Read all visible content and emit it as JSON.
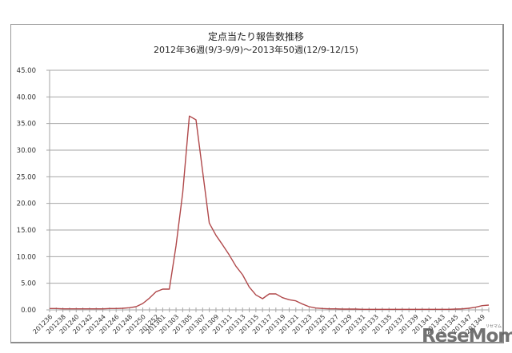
{
  "chart_data": {
    "type": "line",
    "title": "定点当たり報告数推移",
    "subtitle": "2012年36週(9/3-9/9)～2013年50週(12/9-12/15)",
    "xlabel": "",
    "ylabel": "",
    "ylim": [
      0,
      45
    ],
    "yticks": [
      "0.00",
      "5.00",
      "10.00",
      "15.00",
      "20.00",
      "25.00",
      "30.00",
      "35.00",
      "40.00",
      "45.00"
    ],
    "grid": true,
    "legend": null,
    "line_color": "#b0484a",
    "x": [
      "201236",
      "201237",
      "201238",
      "201239",
      "201240",
      "201241",
      "201242",
      "201243",
      "201244",
      "201245",
      "201246",
      "201247",
      "201248",
      "201249",
      "201250",
      "201251",
      "201252",
      "201301",
      "201302",
      "201303",
      "201304",
      "201305",
      "201306",
      "201307",
      "201308",
      "201309",
      "201310",
      "201311",
      "201312",
      "201313",
      "201314",
      "201315",
      "201316",
      "201317",
      "201318",
      "201319",
      "201320",
      "201321",
      "201322",
      "201323",
      "201324",
      "201325",
      "201326",
      "201327",
      "201328",
      "201329",
      "201330",
      "201331",
      "201332",
      "201333",
      "201334",
      "201335",
      "201336",
      "201337",
      "201338",
      "201339",
      "201340",
      "201341",
      "201342",
      "201343",
      "201344",
      "201345",
      "201346",
      "201347",
      "201348",
      "201349",
      "201350"
    ],
    "x_labels_shown": [
      "201236",
      "201238",
      "201240",
      "201242",
      "201244",
      "201246",
      "201248",
      "201250",
      "201252",
      "201301",
      "201303",
      "201305",
      "201307",
      "201309",
      "201311",
      "201313",
      "201315",
      "201317",
      "201319",
      "201321",
      "201323",
      "201325",
      "201327",
      "201329",
      "201331",
      "201333",
      "201335",
      "201337",
      "201339",
      "201341",
      "201343",
      "201345",
      "201347",
      "201349"
    ],
    "series": [
      {
        "name": "定点当たり報告数",
        "values": [
          0.25,
          0.25,
          0.2,
          0.2,
          0.2,
          0.2,
          0.2,
          0.2,
          0.2,
          0.25,
          0.25,
          0.3,
          0.4,
          0.6,
          1.2,
          2.2,
          3.4,
          3.9,
          3.9,
          12.0,
          22.0,
          36.4,
          35.7,
          26.0,
          16.3,
          14.0,
          12.2,
          10.3,
          8.2,
          6.6,
          4.3,
          2.8,
          2.1,
          3.0,
          3.0,
          2.3,
          1.9,
          1.7,
          1.1,
          0.6,
          0.35,
          0.25,
          0.2,
          0.2,
          0.15,
          0.15,
          0.15,
          0.1,
          0.1,
          0.1,
          0.1,
          0.1,
          0.1,
          0.1,
          0.1,
          0.1,
          0.1,
          0.1,
          0.1,
          0.1,
          0.1,
          0.15,
          0.2,
          0.3,
          0.5,
          0.8,
          0.9
        ]
      }
    ]
  },
  "watermark": {
    "text": "ReseMom.",
    "kana": "リセマム"
  }
}
